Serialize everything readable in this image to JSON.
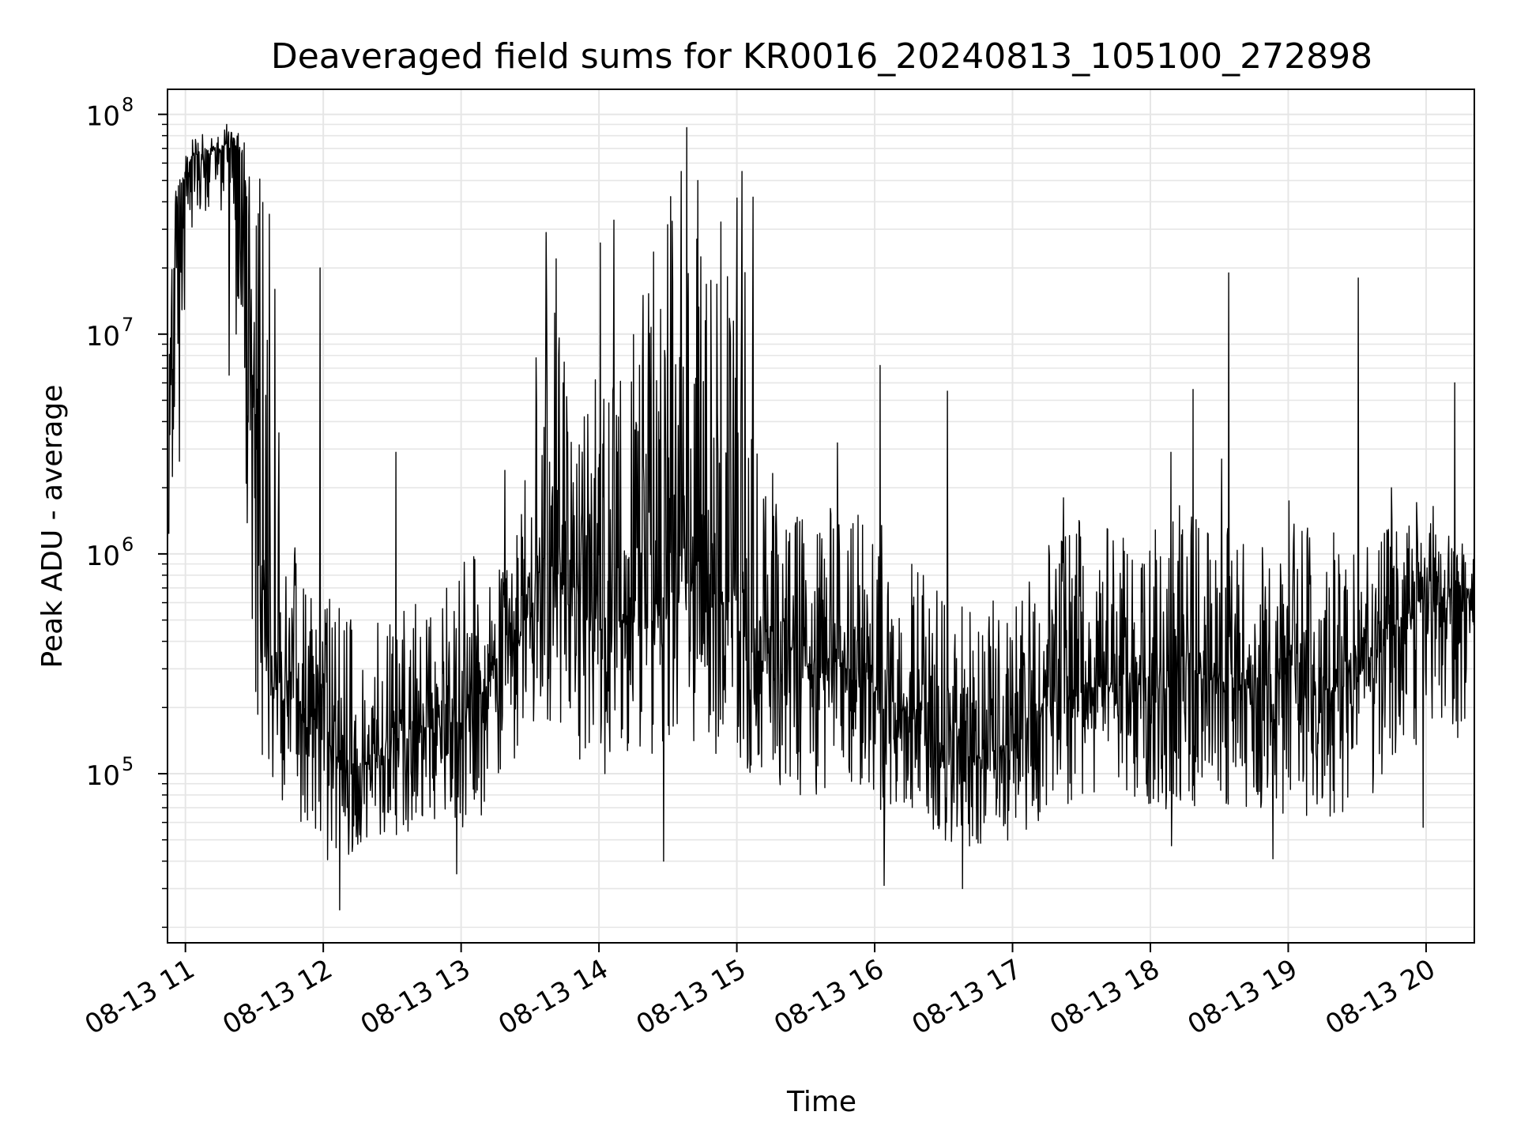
{
  "chart_data": {
    "type": "line",
    "title": "Deaveraged field sums for KR0016_20240813_105100_272898",
    "xlabel": "Time",
    "ylabel": "Peak ADU - average",
    "x_tick_labels": [
      "08-13 11",
      "08-13 12",
      "08-13 13",
      "08-13 14",
      "08-13 15",
      "08-13 16",
      "08-13 17",
      "08-13 18",
      "08-13 19",
      "08-13 20"
    ],
    "x_tick_hours": [
      11,
      12,
      13,
      14,
      15,
      16,
      17,
      18,
      19,
      20
    ],
    "xlim_hours": [
      10.87,
      20.35
    ],
    "y_scale": "log",
    "ylim": [
      17000,
      130000000
    ],
    "y_tick_labels": [
      {
        "base": "10",
        "exp": "5",
        "value": 100000
      },
      {
        "base": "10",
        "exp": "6",
        "value": 1000000
      },
      {
        "base": "10",
        "exp": "7",
        "value": 10000000
      },
      {
        "base": "10",
        "exp": "8",
        "value": 100000000
      }
    ],
    "grid": true,
    "line_color": "#000000",
    "grid_color": "#e6e6e6",
    "series": [
      {
        "x_hours": [
          10.88,
          10.95,
          11.05,
          11.2,
          11.35,
          11.42,
          11.47,
          11.5,
          11.6,
          11.75,
          11.85,
          12.0,
          12.1,
          12.3,
          12.5,
          12.7,
          12.9,
          13.1,
          13.3,
          13.45,
          13.6,
          13.65,
          13.8,
          14.0,
          14.2,
          14.4,
          14.6,
          14.8,
          15.0,
          15.2,
          15.4,
          15.6,
          15.8,
          16.0,
          16.2,
          16.4,
          16.6,
          16.8,
          17.0,
          17.2,
          17.4,
          17.6,
          17.8,
          18.0,
          18.2,
          18.4,
          18.6,
          18.8,
          19.0,
          19.2,
          19.4,
          19.6,
          19.8,
          20.0,
          20.2,
          20.35
        ],
        "y_median": [
          8000000,
          45000000,
          65000000,
          68000000,
          70000000,
          65000000,
          20000000,
          2000000,
          400000,
          250000,
          200000,
          150000,
          120000,
          110000,
          140000,
          160000,
          170000,
          200000,
          350000,
          450000,
          1000000,
          900000,
          600000,
          500000,
          500000,
          600000,
          800000,
          700000,
          700000,
          450000,
          350000,
          300000,
          350000,
          250000,
          200000,
          150000,
          120000,
          120000,
          140000,
          200000,
          220000,
          250000,
          260000,
          250000,
          300000,
          280000,
          250000,
          260000,
          300000,
          250000,
          250000,
          300000,
          500000,
          600000,
          550000,
          600000
        ],
        "y_low": [
          700000,
          2000000,
          30000000,
          40000000,
          30000000,
          5000000,
          500000,
          150000,
          100000,
          60000,
          50000,
          40000,
          35000,
          50000,
          50000,
          55000,
          60000,
          55000,
          100000,
          120000,
          200000,
          150000,
          120000,
          100000,
          90000,
          110000,
          150000,
          130000,
          100000,
          100000,
          80000,
          80000,
          90000,
          70000,
          60000,
          50000,
          45000,
          40000,
          45000,
          60000,
          70000,
          80000,
          80000,
          60000,
          70000,
          70000,
          65000,
          60000,
          65000,
          60000,
          65000,
          70000,
          120000,
          120000,
          130000,
          200000
        ],
        "y_high": [
          12000000,
          75000000,
          80000000,
          85000000,
          85000000,
          80000000,
          75000000,
          70000000,
          65000000,
          1500000,
          800000,
          800000,
          600000,
          500000,
          600000,
          700000,
          800000,
          1000000,
          1500000,
          2500000,
          25000000,
          20000000,
          5000000,
          8000000,
          10000000,
          25000000,
          80000000,
          30000000,
          50000000,
          3000000,
          1500000,
          1500000,
          2000000,
          1500000,
          1000000,
          800000,
          600000,
          600000,
          700000,
          1000000,
          1500000,
          1500000,
          1200000,
          1500000,
          1800000,
          1500000,
          1300000,
          1300000,
          2000000,
          1500000,
          1200000,
          1300000,
          1800000,
          1800000,
          1300000,
          1000000
        ],
        "spikes": [
          {
            "x_hours": 11.3,
            "y": 90000000
          },
          {
            "x_hours": 11.32,
            "y": 6500000
          },
          {
            "x_hours": 11.37,
            "y": 10000000
          },
          {
            "x_hours": 11.98,
            "y": 20000000
          },
          {
            "x_hours": 12.12,
            "y": 24000
          },
          {
            "x_hours": 12.53,
            "y": 2900000
          },
          {
            "x_hours": 12.97,
            "y": 35000
          },
          {
            "x_hours": 13.32,
            "y": 2400000
          },
          {
            "x_hours": 13.62,
            "y": 29000000
          },
          {
            "x_hours": 13.69,
            "y": 22000000
          },
          {
            "x_hours": 14.01,
            "y": 26000000
          },
          {
            "x_hours": 14.11,
            "y": 33000000
          },
          {
            "x_hours": 14.32,
            "y": 15000000
          },
          {
            "x_hours": 14.47,
            "y": 40000
          },
          {
            "x_hours": 14.6,
            "y": 55000000
          },
          {
            "x_hours": 14.64,
            "y": 87000000
          },
          {
            "x_hours": 14.72,
            "y": 50000000
          },
          {
            "x_hours": 15.04,
            "y": 55000000
          },
          {
            "x_hours": 15.12,
            "y": 42000000
          },
          {
            "x_hours": 15.73,
            "y": 3200000
          },
          {
            "x_hours": 16.04,
            "y": 7200000
          },
          {
            "x_hours": 16.07,
            "y": 31000
          },
          {
            "x_hours": 16.53,
            "y": 5500000
          },
          {
            "x_hours": 16.64,
            "y": 30000
          },
          {
            "x_hours": 17.37,
            "y": 1800000
          },
          {
            "x_hours": 18.15,
            "y": 2900000
          },
          {
            "x_hours": 18.15,
            "y": 47000
          },
          {
            "x_hours": 18.31,
            "y": 5600000
          },
          {
            "x_hours": 18.52,
            "y": 2700000
          },
          {
            "x_hours": 18.57,
            "y": 19000000
          },
          {
            "x_hours": 18.89,
            "y": 41000
          },
          {
            "x_hours": 19.51,
            "y": 18000000
          },
          {
            "x_hours": 19.75,
            "y": 2000000
          },
          {
            "x_hours": 19.98,
            "y": 57000
          },
          {
            "x_hours": 20.21,
            "y": 6000000
          }
        ]
      }
    ]
  }
}
